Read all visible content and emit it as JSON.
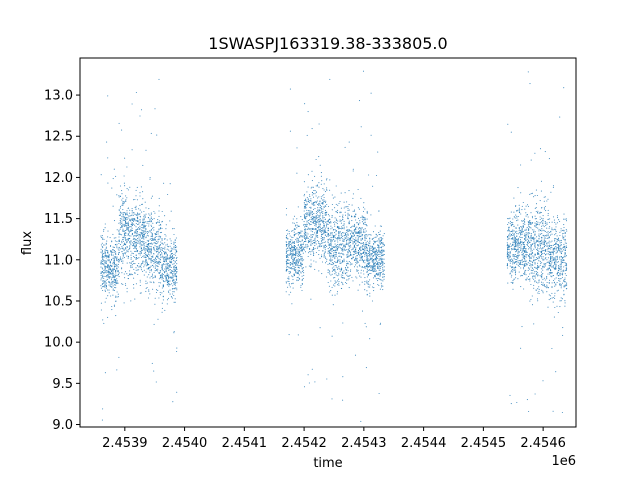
{
  "chart_data": {
    "type": "scatter",
    "title": "1SWASPJ163319.38-333805.0",
    "xlabel": "time",
    "ylabel": "flux",
    "x_offset_label": "1e6",
    "x_unit_scale": 1000000,
    "xlim": [
      2453825,
      2454655
    ],
    "ylim": [
      8.97,
      13.45
    ],
    "xticks": [
      2453900,
      2454000,
      2454100,
      2454200,
      2454300,
      2454400,
      2454500,
      2454600
    ],
    "xtick_labels": [
      "2.4539",
      "2.4540",
      "2.4541",
      "2.4542",
      "2.4543",
      "2.4544",
      "2.4545",
      "2.4546"
    ],
    "yticks": [
      9.0,
      9.5,
      10.0,
      10.5,
      11.0,
      11.5,
      12.0,
      12.5,
      13.0
    ],
    "ytick_labels": [
      "9.0",
      "9.5",
      "10.0",
      "10.5",
      "11.0",
      "11.5",
      "12.0",
      "12.5",
      "13.0"
    ],
    "marker_color": "#1f77b4",
    "grid": false,
    "legend": "none",
    "segments": [
      {
        "x_start": 2453860,
        "x_end": 2453890,
        "center": 10.9,
        "spread": 0.35
      },
      {
        "x_start": 2453890,
        "x_end": 2453935,
        "center": 11.3,
        "spread": 0.45
      },
      {
        "x_start": 2453935,
        "x_end": 2453962,
        "center": 11.1,
        "spread": 0.45
      },
      {
        "x_start": 2453962,
        "x_end": 2453988,
        "center": 10.9,
        "spread": 0.35
      },
      {
        "x_start": 2454170,
        "x_end": 2454200,
        "center": 11.05,
        "spread": 0.35
      },
      {
        "x_start": 2454200,
        "x_end": 2454240,
        "center": 11.4,
        "spread": 0.45
      },
      {
        "x_start": 2454240,
        "x_end": 2454275,
        "center": 11.15,
        "spread": 0.45
      },
      {
        "x_start": 2454275,
        "x_end": 2454305,
        "center": 11.2,
        "spread": 0.4
      },
      {
        "x_start": 2454305,
        "x_end": 2454335,
        "center": 11.0,
        "spread": 0.3
      },
      {
        "x_start": 2454540,
        "x_end": 2454575,
        "center": 11.15,
        "spread": 0.4
      },
      {
        "x_start": 2454575,
        "x_end": 2454610,
        "center": 11.1,
        "spread": 0.5
      },
      {
        "x_start": 2454610,
        "x_end": 2454640,
        "center": 11.0,
        "spread": 0.45
      }
    ]
  }
}
